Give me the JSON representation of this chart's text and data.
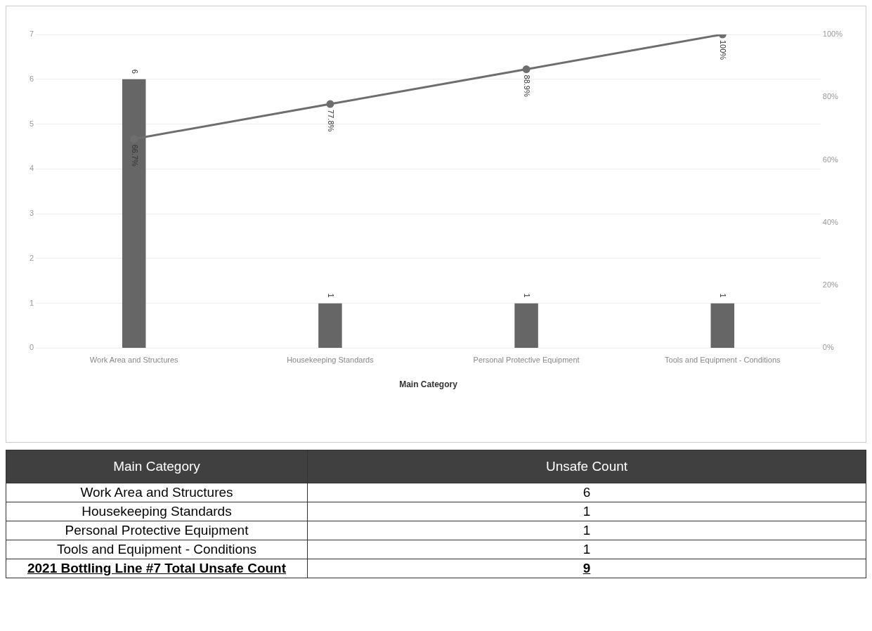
{
  "chart_data": {
    "type": "bar",
    "xlabel": "Main Category",
    "categories": [
      "Work Area and Structures",
      "Housekeeping Standards",
      "Personal Protective Equipment",
      "Tools and Equipment - Conditions"
    ],
    "series": [
      {
        "color": "#666666",
        "values": [
          6,
          1,
          1,
          1
        ],
        "value_labels": [
          "6",
          "1",
          "1",
          "1"
        ]
      },
      {
        "type": "line",
        "axis": "y2",
        "color": "#6e6e6e",
        "values": [
          66.7,
          77.8,
          88.9,
          100
        ],
        "value_labels": [
          "66.7%",
          "77.8%",
          "88.9%",
          "100%"
        ]
      }
    ],
    "ylim": [
      0,
      7
    ],
    "yticks": [
      0,
      1,
      2,
      3,
      4,
      5,
      6,
      7
    ],
    "y2lim": [
      0,
      100
    ],
    "y2ticks": [
      {
        "value": 0,
        "label": "0%"
      },
      {
        "value": 20,
        "label": "20%"
      },
      {
        "value": 40,
        "label": "40%"
      },
      {
        "value": 60,
        "label": "60%"
      },
      {
        "value": 80,
        "label": "80%"
      },
      {
        "value": 100,
        "label": "100%"
      }
    ],
    "grid": "y",
    "legend": false,
    "marker": "circle",
    "line_style": "solid",
    "annotations": [
      "Unsafe Count",
      "2021 Bottling Line #7 Total Unsafe Count",
      "9"
    ]
  }
}
